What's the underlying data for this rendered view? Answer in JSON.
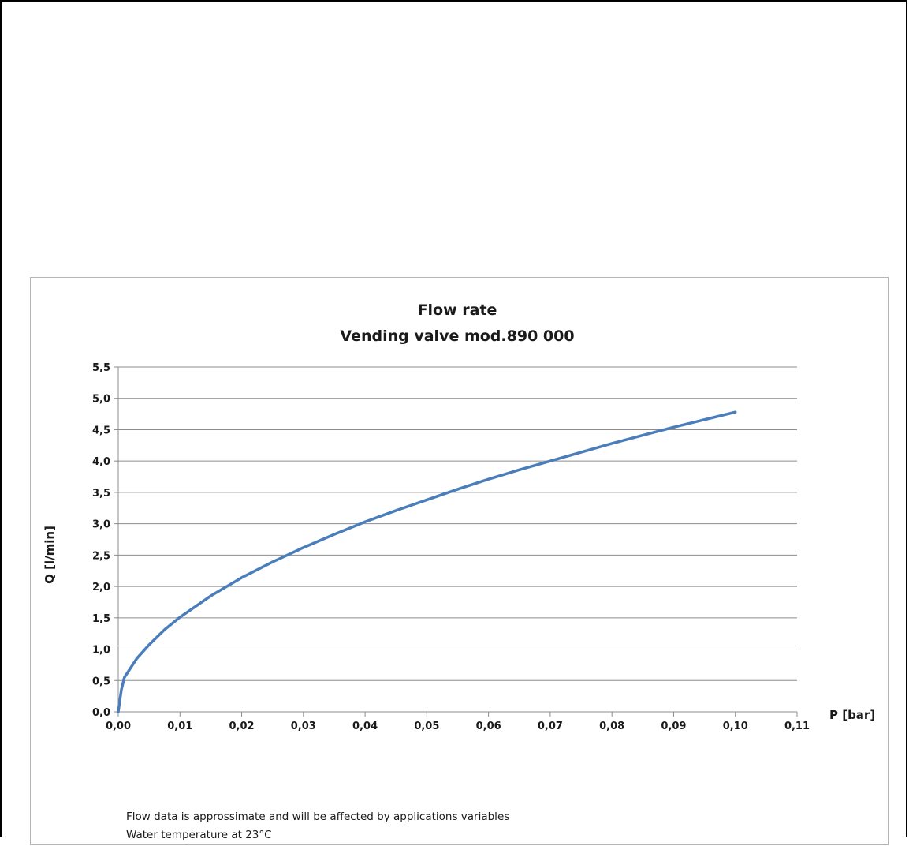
{
  "chart_data": {
    "type": "line",
    "title": "Flow rate",
    "subtitle": "Vending valve mod.890 000",
    "xlabel": "P [bar]",
    "ylabel": "Q [l/min]",
    "xlim": [
      0,
      0.11
    ],
    "ylim": [
      0,
      5.5
    ],
    "x_ticks": [
      "0,00",
      "0,01",
      "0,02",
      "0,03",
      "0,04",
      "0,05",
      "0,06",
      "0,07",
      "0,08",
      "0,09",
      "0,10",
      "0,11"
    ],
    "y_ticks": [
      "0,0",
      "0,5",
      "1,0",
      "1,5",
      "2,0",
      "2,5",
      "3,0",
      "3,5",
      "4,0",
      "4,5",
      "5,0",
      "5,5"
    ],
    "grid": "horizontal",
    "legend": "none",
    "series": [
      {
        "color": "#4a7ebb",
        "x": [
          0,
          0.0005,
          0.001,
          0.002,
          0.003,
          0.005,
          0.0075,
          0.01,
          0.015,
          0.02,
          0.025,
          0.03,
          0.035,
          0.04,
          0.045,
          0.05,
          0.055,
          0.06,
          0.065,
          0.07,
          0.075,
          0.08,
          0.085,
          0.09,
          0.095,
          0.1
        ],
        "y": [
          0,
          0.35,
          0.55,
          0.7,
          0.85,
          1.07,
          1.31,
          1.51,
          1.85,
          2.14,
          2.39,
          2.62,
          2.83,
          3.03,
          3.21,
          3.38,
          3.55,
          3.71,
          3.86,
          4.0,
          4.14,
          4.28,
          4.41,
          4.54,
          4.66,
          4.78
        ]
      }
    ],
    "notes": [
      "Flow data is approssimate and will be affected by applications  variables",
      "Water temperature at 23°C"
    ]
  }
}
